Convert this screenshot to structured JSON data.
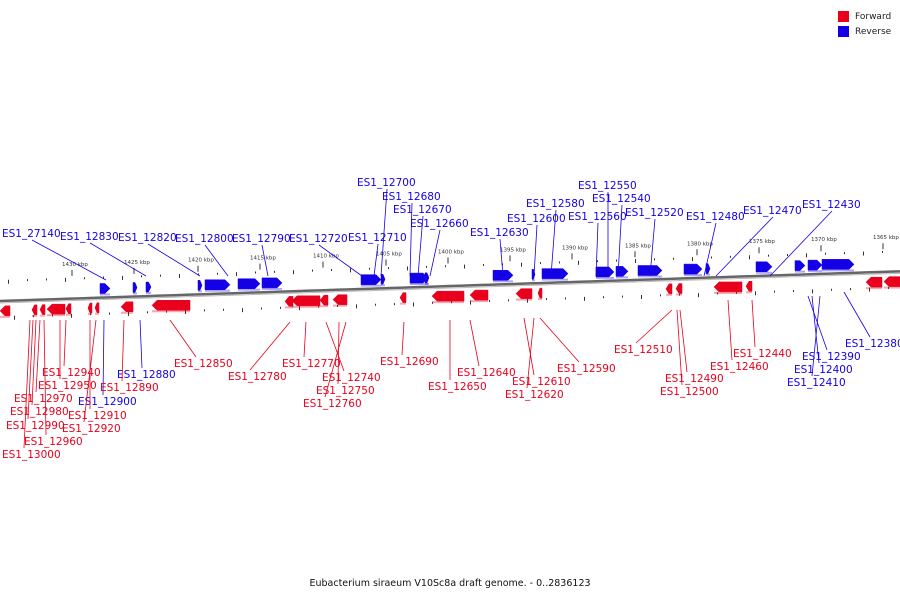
{
  "legend": [
    {
      "label": "Forward",
      "color": "#e8001c"
    },
    {
      "label": "Reverse",
      "color": "#1400e6"
    }
  ],
  "caption": "Eubacterium siraeum V10Sc8a draft genome. - 0..2836123",
  "colors": {
    "forward": "#e8001c",
    "reverse": "#1400e6",
    "backbone": "#888888"
  },
  "scale_marks": [
    "1430 kbp",
    "1425 kbp",
    "1420 kbp",
    "1415 kbp",
    "1410 kbp",
    "1405 kbp",
    "1400 kbp",
    "1395 kbp",
    "1390 kbp",
    "1385 kbp",
    "1380 kbp",
    "1375 kbp",
    "1370 kbp",
    "1365 kbp"
  ],
  "genes": {
    "reverse_above": [
      "ES1_27140",
      "ES1_12830",
      "ES1_12820",
      "ES1_12800",
      "ES1_12790",
      "ES1_12720",
      "ES1_12710",
      "ES1_12700",
      "ES1_12680",
      "ES1_12670",
      "ES1_12660",
      "ES1_12630",
      "ES1_12600",
      "ES1_12580",
      "ES1_12560",
      "ES1_12550",
      "ES1_12540",
      "ES1_12520",
      "ES1_12480",
      "ES1_12470",
      "ES1_12430"
    ],
    "reverse_below": [
      "ES1_12880",
      "ES1_12900",
      "ES1_12380",
      "ES1_12390",
      "ES1_12400",
      "ES1_12410"
    ],
    "forward_below": [
      "ES1_12850",
      "ES1_12780",
      "ES1_12770",
      "ES1_12740",
      "ES1_12750",
      "ES1_12760",
      "ES1_12690",
      "ES1_12640",
      "ES1_12650",
      "ES1_12610",
      "ES1_12620",
      "ES1_12590",
      "ES1_12510",
      "ES1_12490",
      "ES1_12500",
      "ES1_12440",
      "ES1_12460",
      "ES1_12940",
      "ES1_12950",
      "ES1_12970",
      "ES1_12980",
      "ES1_12990",
      "ES1_12960",
      "ES1_13000",
      "ES1_12890",
      "ES1_12910",
      "ES1_12920"
    ]
  }
}
